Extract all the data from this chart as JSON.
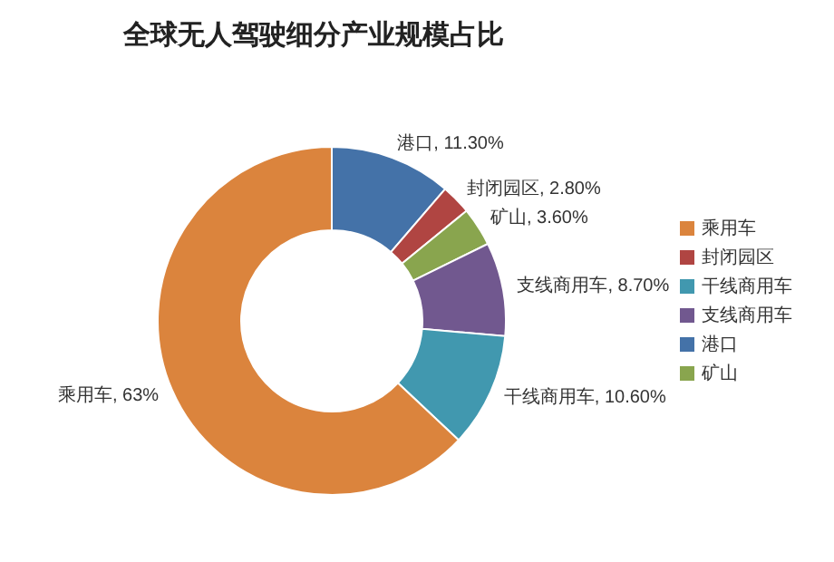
{
  "chart_data": {
    "type": "donut",
    "title": "全球无人驾驶细分产业规模占比",
    "categories": [
      "港口",
      "封闭园区",
      "矿山",
      "支线商用车",
      "干线商用车",
      "乘用车"
    ],
    "values": [
      11.3,
      2.8,
      3.6,
      8.7,
      10.6,
      63
    ],
    "colors": [
      "#4472a8",
      "#b04542",
      "#89a54e",
      "#71588f",
      "#4198af",
      "#db843d"
    ],
    "value_labels": [
      "港口, 11.30%",
      "封闭园区, 2.80%",
      "矿山, 3.60%",
      "支线商用车, 8.70%",
      "干线商用车, 10.60%",
      "乘用车, 63%"
    ],
    "legend": "right"
  }
}
